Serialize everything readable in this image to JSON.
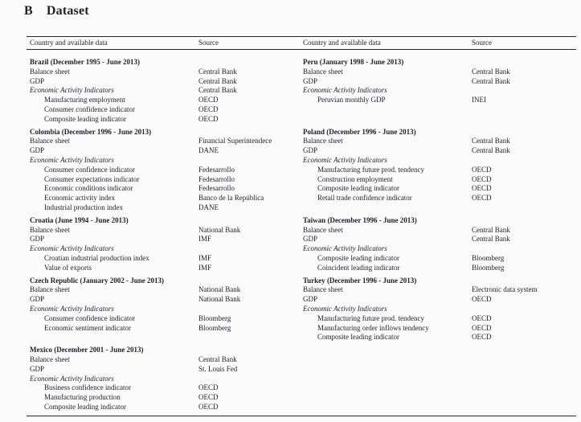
{
  "section": {
    "number": "B",
    "title": "Dataset"
  },
  "table": {
    "columns": [
      "Country and available data",
      "Source",
      "Country and available data",
      "Source"
    ],
    "pairs": [
      {
        "left": {
          "country": "Brazil",
          "period": "(December 1995 - June 2013)",
          "rows": [
            {
              "label": "Balance sheet",
              "source": "Central Bank",
              "style": "plain"
            },
            {
              "label": "GDP",
              "source": "Central Bank",
              "style": "plain"
            },
            {
              "label": "Economic Activity Indicators",
              "source": "Central Bank",
              "style": "italic"
            },
            {
              "label": "Manufacturing employment",
              "source": "OECD",
              "style": "indent"
            },
            {
              "label": "Consumer confidence indicator",
              "source": "OECD",
              "style": "indent"
            },
            {
              "label": "Composite leading indicator",
              "source": "OECD",
              "style": "indent"
            }
          ]
        },
        "right": {
          "country": "Peru",
          "period": "(January 1998 - June 2013)",
          "rows": [
            {
              "label": "Balance sheet",
              "source": "Central Bank",
              "style": "plain"
            },
            {
              "label": "GDP",
              "source": "Central Bank",
              "style": "plain"
            },
            {
              "label": "Economic Activity Indicators",
              "source": "",
              "style": "italic"
            },
            {
              "label": "Peruvian monthly GDP",
              "source": "INEI",
              "style": "indent"
            }
          ]
        }
      },
      {
        "left": {
          "country": "Colombia",
          "period": "(December 1996 - June 2013)",
          "rows": [
            {
              "label": "Balance sheet",
              "source": "Financial Superintendece",
              "style": "plain"
            },
            {
              "label": "GDP",
              "source": "DANE",
              "style": "plain"
            },
            {
              "label": "Economic Activity Indicators",
              "source": "",
              "style": "italic"
            },
            {
              "label": "Consumer confidence indicator",
              "source": "Fedesarrollo",
              "style": "indent"
            },
            {
              "label": "Consumer expectations indicator",
              "source": "Fedesarrollo",
              "style": "indent"
            },
            {
              "label": "Economic conditions indicator",
              "source": "Fedesarrollo",
              "style": "indent"
            },
            {
              "label": "Economic activity index",
              "source": "Banco de la República",
              "style": "indent"
            },
            {
              "label": "Industrial production index",
              "source": "DANE",
              "style": "indent"
            }
          ]
        },
        "right": {
          "country": "Poland",
          "period": "(December 1996 - June 2013)",
          "rows": [
            {
              "label": "Balance sheet",
              "source": "Central Bank",
              "style": "plain"
            },
            {
              "label": "GDP",
              "source": "Central Bank",
              "style": "plain"
            },
            {
              "label": "Economic Activity Indicators",
              "source": "",
              "style": "italic"
            },
            {
              "label": "Manufacturing future prod. tendency",
              "source": "OECD",
              "style": "indent"
            },
            {
              "label": "Construction employment",
              "source": "OECD",
              "style": "indent"
            },
            {
              "label": "Composite leading indicator",
              "source": "OECD",
              "style": "indent"
            },
            {
              "label": "Retail trade confidence indicator",
              "source": "OECD",
              "style": "indent"
            }
          ]
        }
      },
      {
        "left": {
          "country": "Croatia",
          "period": "(June 1994 - June 2013)",
          "rows": [
            {
              "label": "Balance sheet",
              "source": "National Bank",
              "style": "plain"
            },
            {
              "label": "GDP",
              "source": "IMF",
              "style": "plain"
            },
            {
              "label": "Economic Activity Indicators",
              "source": "",
              "style": "italic"
            },
            {
              "label": "Croatian industrial production index",
              "source": "IMF",
              "style": "indent"
            },
            {
              "label": "Value of exports",
              "source": "IMF",
              "style": "indent"
            }
          ]
        },
        "right": {
          "country": "Taiwan",
          "period": "(December 1996 - June 2013)",
          "rows": [
            {
              "label": "Balance sheet",
              "source": "Central Bank",
              "style": "plain"
            },
            {
              "label": "GDP",
              "source": "Central Bank",
              "style": "plain"
            },
            {
              "label": "Economic Activity Indicators",
              "source": "",
              "style": "italic"
            },
            {
              "label": "Composite leading indicator",
              "source": "Bloomberg",
              "style": "indent"
            },
            {
              "label": "Coincident leading indicator",
              "source": "Bloomberg",
              "style": "indent"
            }
          ]
        }
      },
      {
        "left": {
          "country": "Czech Republic",
          "period": "(January 2002 - June 2013)",
          "rows": [
            {
              "label": "Balance sheet",
              "source": "National Bank",
              "style": "plain"
            },
            {
              "label": "GDP",
              "source": "National Bank",
              "style": "plain"
            },
            {
              "label": "Economic Activity Indicators",
              "source": "",
              "style": "italic"
            },
            {
              "label": "Consumer confidence indicator",
              "source": "Bloomberg",
              "style": "indent"
            },
            {
              "label": "Economic sentiment indicator",
              "source": "Bloomberg",
              "style": "indent"
            }
          ]
        },
        "right": {
          "country": "Turkey",
          "period": "(December 1996 - June 2013)",
          "rows": [
            {
              "label": "Balance sheet",
              "source": "Electronic data system",
              "style": "plain"
            },
            {
              "label": "GDP",
              "source": "OECD",
              "style": "plain"
            },
            {
              "label": "Economic Activity Indicators",
              "source": "",
              "style": "italic"
            },
            {
              "label": "Manufacturing future prod. tendency",
              "source": "OECD",
              "style": "indent"
            },
            {
              "label": "Manufacturing order inflows tendency",
              "source": "OECD",
              "style": "indent"
            },
            {
              "label": "Composite leading indicator",
              "source": "OECD",
              "style": "indent"
            }
          ]
        }
      },
      {
        "left": {
          "country": "Mexico",
          "period": "(December 2001 - June 2013)",
          "rows": [
            {
              "label": "Balance sheet",
              "source": "Central Bank",
              "style": "plain"
            },
            {
              "label": "GDP",
              "source": "St. Louis Fed",
              "style": "plain"
            },
            {
              "label": "Economic Activity Indicators",
              "source": "",
              "style": "italic"
            },
            {
              "label": "Business confidence indicator",
              "source": "OECD",
              "style": "indent"
            },
            {
              "label": "Manufacturing production",
              "source": "OECD",
              "style": "indent"
            },
            {
              "label": "Composite leading indicator",
              "source": "OECD",
              "style": "indent"
            }
          ]
        },
        "right": null
      }
    ]
  }
}
